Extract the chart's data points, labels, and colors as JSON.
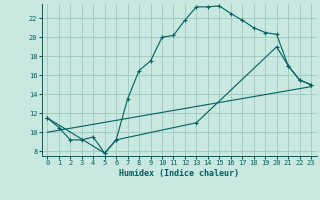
{
  "xlabel": "Humidex (Indice chaleur)",
  "bg_color": "#c8e8e0",
  "grid_color": "#a0c8c0",
  "line_color": "#006060",
  "xlim": [
    -0.5,
    23.5
  ],
  "ylim": [
    7.5,
    23.5
  ],
  "yticks": [
    8,
    10,
    12,
    14,
    16,
    18,
    20,
    22
  ],
  "xticks": [
    0,
    1,
    2,
    3,
    4,
    5,
    6,
    7,
    8,
    9,
    10,
    11,
    12,
    13,
    14,
    15,
    16,
    17,
    18,
    19,
    20,
    21,
    22,
    23
  ],
  "line1_x": [
    0,
    1,
    2,
    3,
    4,
    5,
    6,
    7,
    8,
    9,
    10,
    11,
    12,
    13,
    14,
    15,
    16,
    17,
    18,
    19,
    20,
    21,
    22,
    23
  ],
  "line1_y": [
    11.5,
    10.5,
    9.2,
    9.2,
    9.5,
    7.8,
    9.2,
    13.5,
    16.5,
    17.5,
    20.0,
    20.2,
    21.8,
    23.2,
    23.2,
    23.3,
    22.5,
    21.8,
    21.0,
    20.5,
    20.3,
    17.0,
    15.5,
    15.0
  ],
  "line2_x": [
    0,
    5,
    6,
    13,
    20,
    21,
    22,
    23
  ],
  "line2_y": [
    11.5,
    7.8,
    9.2,
    11.0,
    19.0,
    17.0,
    15.5,
    15.0
  ],
  "line3_x": [
    0,
    23
  ],
  "line3_y": [
    10.0,
    14.8
  ]
}
